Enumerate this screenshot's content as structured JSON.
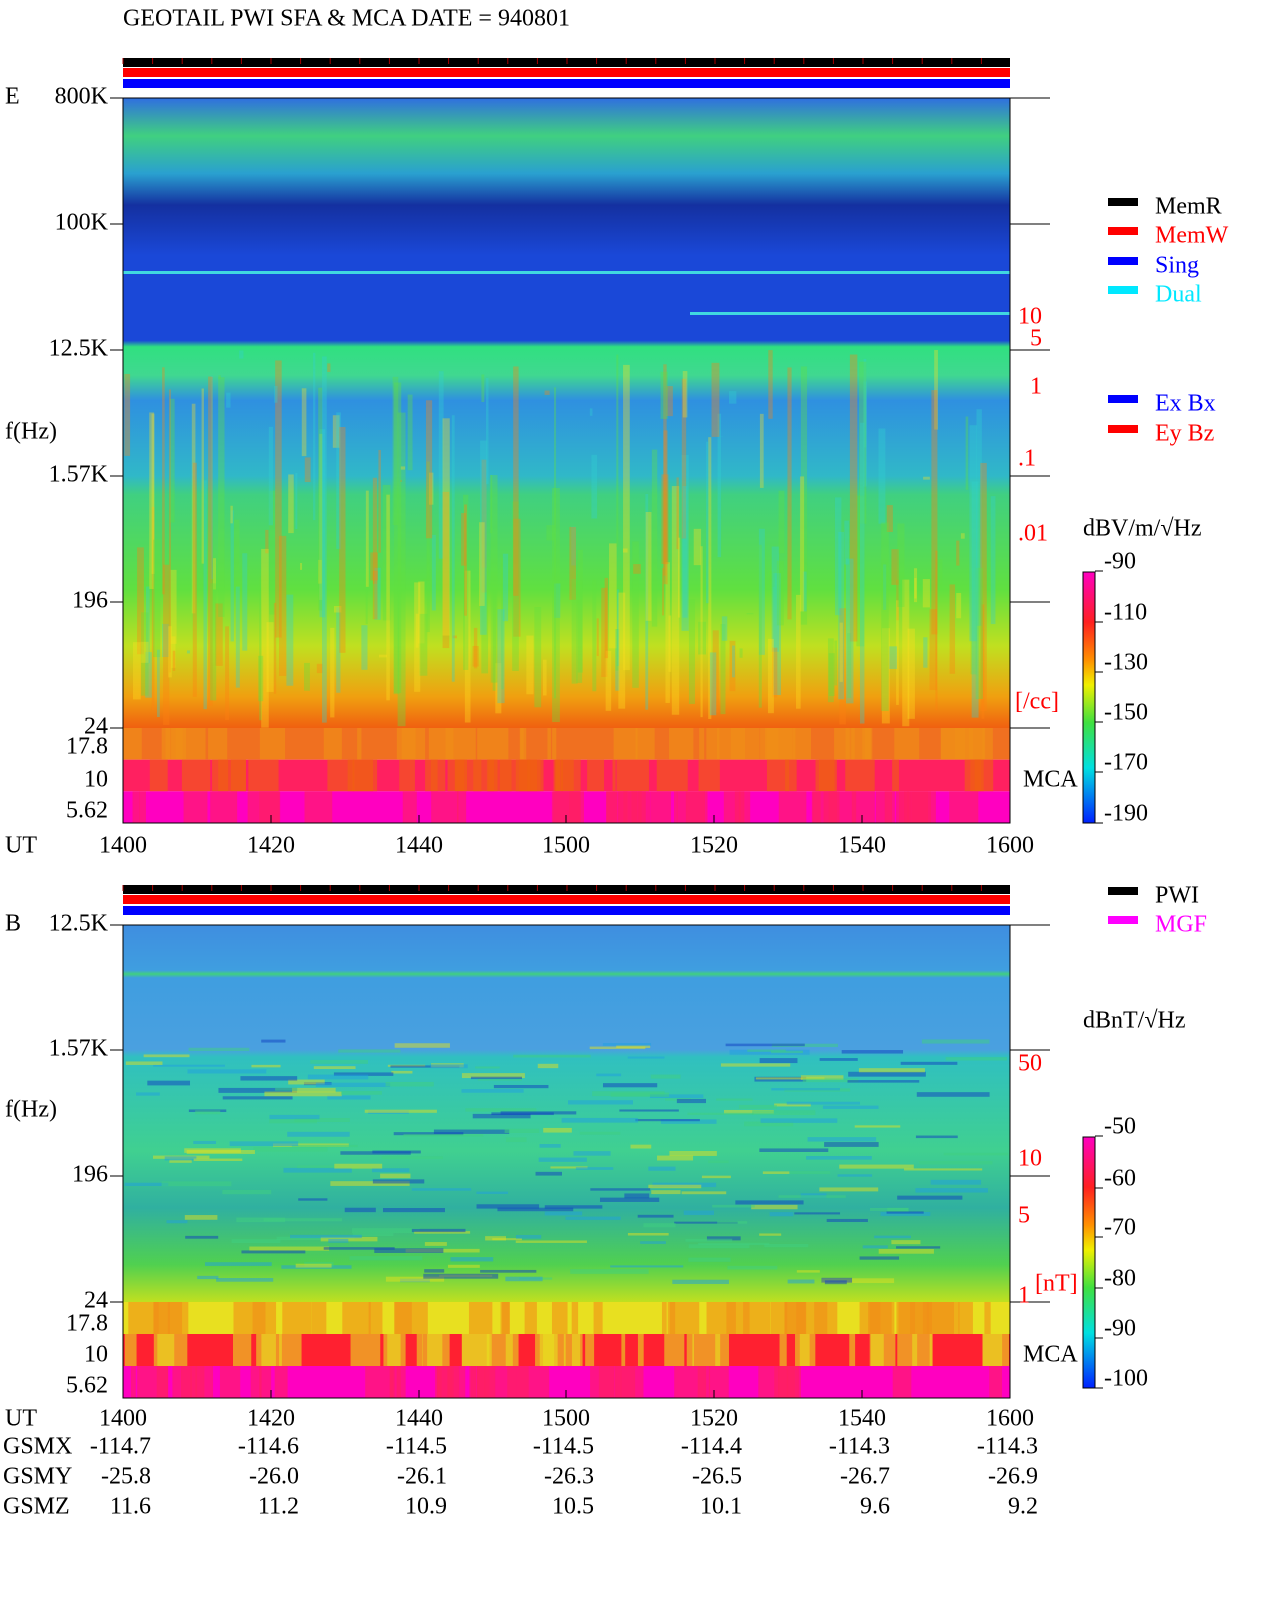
{
  "header": {
    "title": "GEOTAIL  PWI SFA & MCA   DATE = 940801"
  },
  "panels": [
    {
      "label": "E",
      "y_label": "f(Hz)",
      "freq_ticks": [
        "800K",
        "100K",
        "12.5K",
        "1.57K",
        "196",
        "24",
        "17.8",
        "10",
        "5.62"
      ],
      "side_ticks": [
        "10",
        "5",
        "1",
        ".1",
        ".01",
        "[/cc]"
      ],
      "side_color": "#ff0000",
      "mca_label": "MCA",
      "unit": "dBV/m/√Hz",
      "colorbar_ticks": [
        "-90",
        "-110",
        "-130",
        "-150",
        "-170",
        "-190"
      ],
      "time_label": "UT",
      "time_ticks": [
        "1400",
        "1420",
        "1440",
        "1500",
        "1520",
        "1540",
        "1600"
      ]
    },
    {
      "label": "B",
      "y_label": "f(Hz)",
      "freq_ticks": [
        "12.5K",
        "1.57K",
        "196",
        "24",
        "17.8",
        "10",
        "5.62"
      ],
      "side_ticks": [
        "50",
        "10",
        "5",
        "1",
        "[nT]"
      ],
      "side_color": "#ff0000",
      "mca_label": "MCA",
      "unit": "dBnT/√Hz",
      "colorbar_ticks": [
        "-50",
        "-60",
        "-70",
        "-80",
        "-90",
        "-100"
      ],
      "time_label": "UT",
      "time_ticks": [
        "1400",
        "1420",
        "1440",
        "1500",
        "1520",
        "1540",
        "1600"
      ]
    }
  ],
  "legend": {
    "modes": [
      {
        "label": "MemR",
        "color": "#000000"
      },
      {
        "label": "MemW",
        "color": "#ff0000"
      },
      {
        "label": "Sing",
        "color": "#0000ff"
      },
      {
        "label": "Dual",
        "color": "#00e8ff"
      }
    ],
    "antennas": [
      {
        "label": "Ex Bx",
        "color": "#0000ff"
      },
      {
        "label": "Ey Bz",
        "color": "#ff0000"
      }
    ],
    "sources": [
      {
        "label": "PWI",
        "color": "#000000"
      },
      {
        "label": "MGF",
        "color": "#ff00ff"
      }
    ]
  },
  "orbit": {
    "rows": [
      {
        "label": "GSMX",
        "values": [
          "-114.7",
          "-114.6",
          "-114.5",
          "-114.5",
          "-114.4",
          "-114.3",
          "-114.3"
        ]
      },
      {
        "label": "GSMY",
        "values": [
          "-25.8",
          "-26.0",
          "-26.1",
          "-26.3",
          "-26.5",
          "-26.7",
          "-26.9"
        ]
      },
      {
        "label": "GSMZ",
        "values": [
          "11.6",
          "11.2",
          "10.9",
          "10.5",
          "10.1",
          "9.6",
          "9.2"
        ]
      }
    ]
  }
}
